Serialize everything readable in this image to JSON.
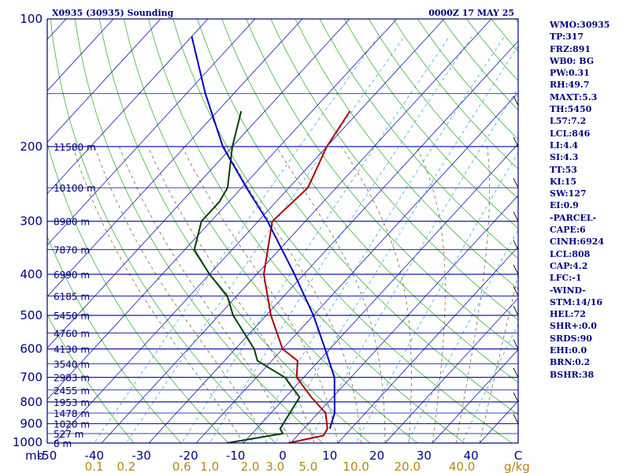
{
  "header": {
    "station_title": "X0935 (30935) Sounding",
    "datetime": "0000Z 17 MAY 25"
  },
  "indices": [
    "WMO:30935",
    "TP:317",
    "FRZ:891",
    "WB0: BG",
    "PW:0.31",
    "RH:49.7",
    "MAXT:5.3",
    "TH:5450",
    "L57:7.2",
    "LCL:846",
    "LI:4.4",
    "SI:4.3",
    "TT:53",
    "KI:15",
    "SW:127",
    "EI:0.9",
    "-PARCEL-",
    "CAPE:6",
    "CINH:6924",
    "LCL:808",
    "CAP:4.2",
    "LFC:-1",
    "-WIND-",
    "STM:14/16",
    "HEL:72",
    "SHR+:0.0",
    "SRDS:90",
    "EHI:0.0",
    "BRN:0.2",
    "BSHR:38"
  ],
  "chart_data": {
    "type": "skew-t log-p",
    "pressure_unit": "mb",
    "pressure_ticks": [
      100,
      200,
      300,
      400,
      500,
      600,
      700,
      800,
      900,
      1000
    ],
    "pressure_range": [
      100,
      1000
    ],
    "temperature_ticks": [
      "-50",
      "-40",
      "-30",
      "-20",
      "-10",
      "0",
      "10",
      "20",
      "30",
      "40",
      "C"
    ],
    "temperature_range": [
      -50,
      50
    ],
    "mixing_ratio_unit": "g/kg",
    "mixing_ratio_ticks": [
      "0.1",
      "0.2",
      "0.6",
      "1.0",
      "2.0",
      "3.0",
      "5.0",
      "10.0",
      "20.0",
      "40.0"
    ],
    "height_labels": [
      {
        "p": 200,
        "label": "11580 m"
      },
      {
        "p": 250,
        "label": "10100 m"
      },
      {
        "p": 300,
        "label": "8900 m"
      },
      {
        "p": 350,
        "label": "7870 m"
      },
      {
        "p": 400,
        "label": "6990 m"
      },
      {
        "p": 450,
        "label": "6185 m"
      },
      {
        "p": 500,
        "label": "5450 m"
      },
      {
        "p": 550,
        "label": "4760 m"
      },
      {
        "p": 600,
        "label": "4130 m"
      },
      {
        "p": 650,
        "label": "3540 m"
      },
      {
        "p": 700,
        "label": "2983 m"
      },
      {
        "p": 750,
        "label": "2455 m"
      },
      {
        "p": 800,
        "label": "1953 m"
      },
      {
        "p": 850,
        "label": "1478 m"
      },
      {
        "p": 900,
        "label": "1020 m"
      },
      {
        "p": 950,
        "label": "527 m"
      },
      {
        "p": 1000,
        "label": "8 m"
      }
    ],
    "series": [
      {
        "color": "#b00000",
        "points": [
          [
            1000,
            -0.5
          ],
          [
            960,
            5.5
          ],
          [
            925,
            5.0
          ],
          [
            850,
            1.6
          ],
          [
            780,
            -4.5
          ],
          [
            700,
            -11.5
          ],
          [
            640,
            -14.5
          ],
          [
            600,
            -20
          ],
          [
            500,
            -29
          ],
          [
            400,
            -38.5
          ],
          [
            300,
            -47
          ],
          [
            250,
            -46
          ],
          [
            200,
            -50
          ],
          [
            165,
            -52
          ]
        ]
      },
      {
        "color": "#004000",
        "points": [
          [
            1000,
            -13.5
          ],
          [
            950,
            -3.5
          ],
          [
            925,
            -5
          ],
          [
            780,
            -7
          ],
          [
            700,
            -14
          ],
          [
            640,
            -23
          ],
          [
            600,
            -26
          ],
          [
            500,
            -37
          ],
          [
            450,
            -42
          ],
          [
            400,
            -50
          ],
          [
            350,
            -58
          ],
          [
            300,
            -62
          ],
          [
            270,
            -62
          ],
          [
            250,
            -63
          ],
          [
            200,
            -70
          ],
          [
            165,
            -75
          ]
        ]
      },
      {
        "color": "#0000c0",
        "points": [
          [
            925,
            5.5
          ],
          [
            850,
            3.5
          ],
          [
            700,
            -3.5
          ],
          [
            600,
            -11
          ],
          [
            500,
            -20
          ],
          [
            400,
            -32
          ],
          [
            300,
            -48
          ],
          [
            250,
            -59
          ],
          [
            200,
            -72
          ],
          [
            150,
            -86
          ],
          [
            110,
            -100
          ]
        ]
      }
    ],
    "wind_barbs": [
      {
        "p": 160
      },
      {
        "p": 200
      },
      {
        "p": 250
      },
      {
        "p": 300
      },
      {
        "p": 350
      },
      {
        "p": 400
      },
      {
        "p": 450
      },
      {
        "p": 500
      },
      {
        "p": 600
      },
      {
        "p": 700
      },
      {
        "p": 800
      },
      {
        "p": 900
      }
    ],
    "grid": true
  }
}
